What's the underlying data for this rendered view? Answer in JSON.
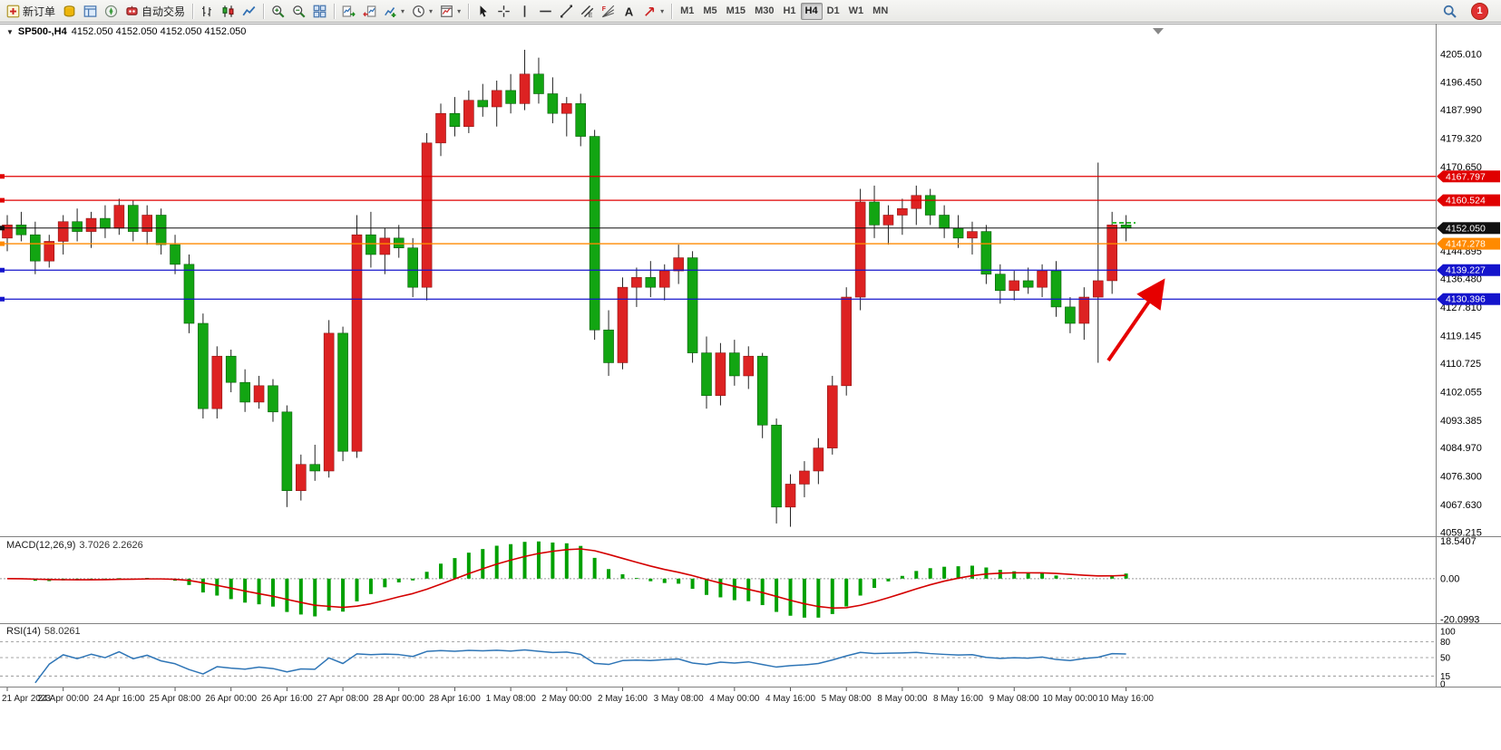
{
  "toolbar": {
    "new_order_label": "新订单",
    "auto_trade_label": "自动交易",
    "notification_count": "1",
    "active_timeframe": "H4",
    "timeframes": [
      "M1",
      "M5",
      "M15",
      "M30",
      "H1",
      "H4",
      "D1",
      "W1",
      "MN"
    ],
    "groups": [
      {
        "items": [
          {
            "name": "new-order-button",
            "icon": "new-order-icon",
            "label": "新订单"
          },
          {
            "name": "market-watch-button",
            "icon": "market-watch-icon"
          },
          {
            "name": "data-window-button",
            "icon": "data-window-icon"
          },
          {
            "name": "navigator-button",
            "icon": "navigator-icon"
          },
          {
            "name": "auto-trade-button",
            "icon": "auto-trade-icon",
            "label": "自动交易"
          }
        ]
      },
      {
        "items": [
          {
            "name": "bar-chart-button",
            "icon": "bar-chart-icon"
          },
          {
            "name": "candle-chart-button",
            "icon": "candle-chart-icon"
          },
          {
            "name": "line-chart-button",
            "icon": "line-chart-icon"
          }
        ]
      },
      {
        "items": [
          {
            "name": "zoom-in-button",
            "icon": "zoom-in-icon"
          },
          {
            "name": "zoom-out-button",
            "icon": "zoom-out-icon"
          },
          {
            "name": "tile-windows-button",
            "icon": "tile-windows-icon"
          }
        ]
      },
      {
        "items": [
          {
            "name": "auto-scroll-button",
            "icon": "auto-scroll-icon"
          },
          {
            "name": "chart-shift-button",
            "icon": "chart-shift-icon"
          },
          {
            "name": "indicators-button",
            "icon": "indicators-icon",
            "dropdown": true
          },
          {
            "name": "periods-button",
            "icon": "clock-icon",
            "dropdown": true
          },
          {
            "name": "templates-button",
            "icon": "template-icon",
            "dropdown": true
          }
        ]
      },
      {
        "items": [
          {
            "name": "cursor-button",
            "icon": "cursor-icon"
          },
          {
            "name": "crosshair-button",
            "icon": "crosshair-icon"
          },
          {
            "name": "vertical-line-button",
            "icon": "vertical-line-icon"
          },
          {
            "name": "horizontal-line-button",
            "icon": "horizontal-line-icon"
          },
          {
            "name": "trendline-button",
            "icon": "trendline-icon"
          },
          {
            "name": "equidistant-channel-button",
            "icon": "channel-icon"
          },
          {
            "name": "fibonacci-button",
            "icon": "fibonacci-icon"
          },
          {
            "name": "text-button",
            "icon": "text-icon"
          },
          {
            "name": "arrows-button",
            "icon": "arrow-object-icon",
            "dropdown": true
          }
        ]
      }
    ]
  },
  "chart_header": {
    "collapse_glyph": "▼",
    "symbol_period": "SP500-,H4",
    "ohlc_text": "4152.050 4152.050 4152.050 4152.050"
  },
  "price_axis": {
    "ticks": [
      "4205.010",
      "4196.450",
      "4187.990",
      "4179.320",
      "4170.650",
      "4144.895",
      "4136.480",
      "4127.810",
      "4119.145",
      "4110.725",
      "4102.055",
      "4093.385",
      "4084.970",
      "4076.300",
      "4067.630",
      "4059.215"
    ]
  },
  "hlines": [
    {
      "price": 4167.797,
      "label": "4167.797",
      "color": "#e00000",
      "kind": "resistance"
    },
    {
      "price": 4160.524,
      "label": "4160.524",
      "color": "#e00000",
      "kind": "resistance"
    },
    {
      "price": 4152.05,
      "label": "4152.050",
      "color": "#111111",
      "kind": "current-price"
    },
    {
      "price": 4147.278,
      "label": "4147.278",
      "color": "#ff8a00",
      "kind": "level"
    },
    {
      "price": 4139.227,
      "label": "4139.227",
      "color": "#1414cc",
      "kind": "support"
    },
    {
      "price": 4130.396,
      "label": "4130.396",
      "color": "#1414cc",
      "kind": "support"
    }
  ],
  "macd_panel": {
    "title": "MACD(12,26,9)",
    "values": "3.7026 2.2626",
    "axis": [
      "18.5407",
      "0.00",
      "-20.0993"
    ],
    "range": [
      -22,
      20.5
    ],
    "histogram_color": "#00a000",
    "signal_color": "#d40000"
  },
  "rsi_panel": {
    "title": "RSI(14)",
    "value": "58.0261",
    "axis": [
      "100",
      "80",
      "50",
      "15",
      "0"
    ],
    "levels": [
      80,
      50,
      15
    ],
    "line_color": "#2e75b6"
  },
  "annotations": {
    "arrow": {
      "color": "#e60000",
      "direction": "up-right"
    },
    "dashed_marker_color": "#33bb33"
  },
  "chart_data": {
    "type": "candlestick",
    "symbol": "SP500-",
    "timeframe": "H4",
    "up_color": "#dd2222",
    "down_color": "#12a512",
    "price_axis_top": 4205.01,
    "price_axis_bottom": 4059.215,
    "bars_per_label": 4,
    "x_labels": [
      "21 Apr 2023",
      "24 Apr 00:00",
      "24 Apr 16:00",
      "25 Apr 08:00",
      "26 Apr 00:00",
      "26 Apr 16:00",
      "27 Apr 08:00",
      "28 Apr 00:00",
      "28 Apr 16:00",
      "1 May 08:00",
      "2 May 00:00",
      "2 May 16:00",
      "3 May 08:00",
      "4 May 00:00",
      "4 May 16:00",
      "5 May 08:00",
      "8 May 00:00",
      "8 May 16:00",
      "9 May 08:00",
      "10 May 00:00",
      "10 May 16:00"
    ],
    "candles": [
      [
        4149,
        4156,
        4145,
        4153
      ],
      [
        4153,
        4157,
        4148,
        4150
      ],
      [
        4150,
        4154,
        4138,
        4142
      ],
      [
        4142,
        4150,
        4140,
        4148
      ],
      [
        4148,
        4156,
        4144,
        4154
      ],
      [
        4154,
        4158,
        4148,
        4151
      ],
      [
        4151,
        4157,
        4146,
        4155
      ],
      [
        4155,
        4159,
        4149,
        4152
      ],
      [
        4152,
        4161,
        4150,
        4159
      ],
      [
        4159,
        4160.5,
        4148,
        4151
      ],
      [
        4151,
        4159,
        4147,
        4156
      ],
      [
        4156,
        4158,
        4144,
        4147
      ],
      [
        4147,
        4150,
        4138,
        4141
      ],
      [
        4141,
        4144,
        4120,
        4123
      ],
      [
        4123,
        4126,
        4094,
        4097
      ],
      [
        4097,
        4116,
        4094,
        4113
      ],
      [
        4113,
        4115,
        4102,
        4105
      ],
      [
        4105,
        4109,
        4096,
        4099
      ],
      [
        4099,
        4107,
        4097,
        4104
      ],
      [
        4104,
        4106,
        4093,
        4096
      ],
      [
        4096,
        4098,
        4067,
        4072
      ],
      [
        4072,
        4083,
        4069,
        4080
      ],
      [
        4080,
        4086,
        4075,
        4078
      ],
      [
        4078,
        4124,
        4076,
        4120
      ],
      [
        4120,
        4122,
        4081,
        4084
      ],
      [
        4084,
        4156,
        4082,
        4150
      ],
      [
        4150,
        4157,
        4140,
        4144
      ],
      [
        4144,
        4152,
        4138,
        4149
      ],
      [
        4149,
        4153,
        4143,
        4146
      ],
      [
        4146,
        4149,
        4131,
        4134
      ],
      [
        4134,
        4181,
        4130,
        4178
      ],
      [
        4178,
        4190,
        4174,
        4187
      ],
      [
        4187,
        4192,
        4180,
        4183
      ],
      [
        4183,
        4194,
        4181,
        4191
      ],
      [
        4191,
        4196,
        4186,
        4189
      ],
      [
        4189,
        4197,
        4183,
        4194
      ],
      [
        4194,
        4199,
        4187,
        4190
      ],
      [
        4190,
        4206.4,
        4188,
        4199
      ],
      [
        4199,
        4204,
        4190,
        4193
      ],
      [
        4193,
        4198,
        4184,
        4187
      ],
      [
        4187,
        4192,
        4180,
        4190
      ],
      [
        4190,
        4193,
        4177,
        4180
      ],
      [
        4180,
        4182,
        4118,
        4121
      ],
      [
        4121,
        4127,
        4107,
        4111
      ],
      [
        4111,
        4137,
        4109,
        4134
      ],
      [
        4134,
        4140,
        4128,
        4137
      ],
      [
        4137,
        4142,
        4131,
        4134
      ],
      [
        4134,
        4141,
        4130,
        4139
      ],
      [
        4139,
        4147,
        4135,
        4143
      ],
      [
        4143,
        4145,
        4111,
        4114
      ],
      [
        4114,
        4119,
        4097,
        4101
      ],
      [
        4101,
        4117,
        4098,
        4114
      ],
      [
        4114,
        4118,
        4104,
        4107
      ],
      [
        4107,
        4116,
        4103,
        4113
      ],
      [
        4113,
        4114,
        4088,
        4092
      ],
      [
        4092,
        4094,
        4062,
        4067
      ],
      [
        4067,
        4077,
        4061,
        4074
      ],
      [
        4074,
        4081,
        4070,
        4078
      ],
      [
        4078,
        4088,
        4074,
        4085
      ],
      [
        4085,
        4107,
        4083,
        4104
      ],
      [
        4104,
        4134,
        4101,
        4131
      ],
      [
        4131,
        4164,
        4127,
        4160
      ],
      [
        4160,
        4165,
        4149,
        4153
      ],
      [
        4153,
        4159,
        4147,
        4156
      ],
      [
        4156,
        4161,
        4150,
        4158
      ],
      [
        4158,
        4165,
        4153,
        4162
      ],
      [
        4162,
        4164,
        4153,
        4156
      ],
      [
        4156,
        4159,
        4149,
        4152
      ],
      [
        4152,
        4156,
        4146,
        4149
      ],
      [
        4149,
        4154,
        4144,
        4151
      ],
      [
        4151,
        4153,
        4135,
        4138
      ],
      [
        4138,
        4141,
        4129,
        4133
      ],
      [
        4133,
        4139,
        4130,
        4136
      ],
      [
        4136,
        4140,
        4132,
        4134
      ],
      [
        4134,
        4141,
        4131,
        4139
      ],
      [
        4139,
        4142,
        4125,
        4128
      ],
      [
        4128,
        4131,
        4120,
        4123
      ],
      [
        4123,
        4134,
        4118,
        4131
      ],
      [
        4131,
        4172,
        4111,
        4136
      ],
      [
        4136,
        4157,
        4132,
        4153
      ],
      [
        4153,
        4156,
        4148,
        4152.05
      ]
    ],
    "indicators": [
      {
        "type": "MACD",
        "params": [
          12,
          26,
          9
        ]
      },
      {
        "type": "RSI",
        "params": [
          14
        ]
      }
    ]
  }
}
